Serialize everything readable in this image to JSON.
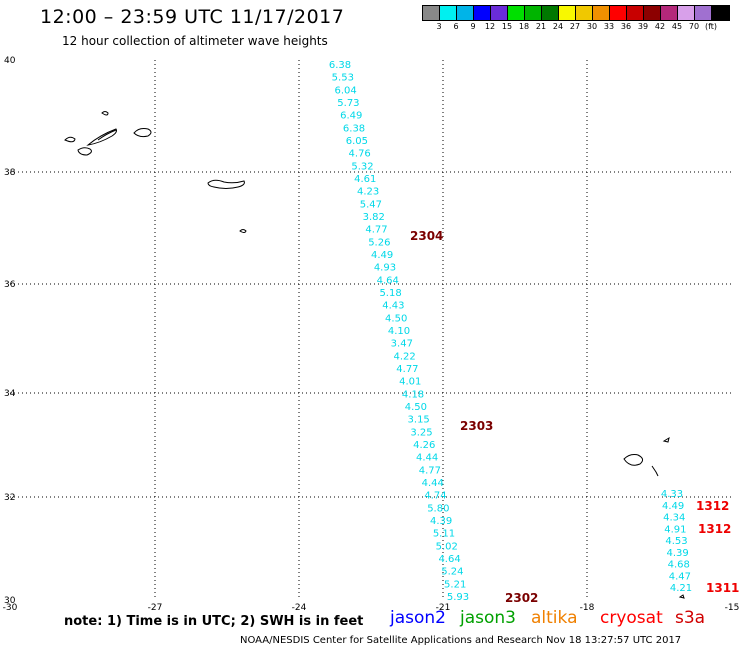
{
  "title": "12:00 – 23:59 UTC 11/17/2017",
  "subtitle": "12 hour collection of altimeter wave heights",
  "legend": {
    "colors": [
      "#888888",
      "#00f0f0",
      "#00b4e8",
      "#0000ff",
      "#6a2cd8",
      "#00e000",
      "#00b400",
      "#007800",
      "#f8f800",
      "#f0c800",
      "#f09000",
      "#ff0000",
      "#c80000",
      "#8c0000",
      "#b4287a",
      "#d8a0ea",
      "#a070d0",
      "#000000"
    ],
    "labels": [
      "3",
      "6",
      "9",
      "12",
      "15",
      "18",
      "21",
      "24",
      "27",
      "30",
      "33",
      "36",
      "39",
      "42",
      "45",
      "70",
      "(ft)"
    ]
  },
  "map": {
    "lon_ticks": [
      "-30",
      "-27",
      "-24",
      "-21",
      "-18",
      "-15"
    ],
    "lat_ticks": [
      "40",
      "38",
      "36",
      "34",
      "32",
      "30"
    ],
    "wave_color": "#00d8e8",
    "track_west": [
      "6.38",
      "5.53",
      "6.04",
      "5.73",
      "6.49",
      "6.38",
      "6.05",
      "4.76",
      "5.32",
      "4.61",
      "4.23",
      "5.47",
      "3.82",
      "4.77",
      "5.26",
      "4.49",
      "4.93",
      "4.64",
      "5.18",
      "4.43",
      "4.50",
      "4.10",
      "3.47",
      "4.22",
      "4.77",
      "4.01",
      "4.18",
      "4.50",
      "3.15",
      "3.25",
      "4.26",
      "4.44",
      "4.77",
      "4.44",
      "4.74",
      "5.80",
      "4.39",
      "5.11",
      "5.02",
      "4.64",
      "5.24",
      "5.21",
      "5.93"
    ],
    "track_east": [
      "4.33",
      "4.49",
      "4.34",
      "4.91",
      "4.53",
      "4.39",
      "4.68",
      "4.47",
      "4.21"
    ],
    "time_labels": [
      {
        "text": "2304",
        "color": "#7a0000"
      },
      {
        "text": "2303",
        "color": "#7a0000"
      },
      {
        "text": "2302",
        "color": "#7a0000"
      },
      {
        "text": "1312",
        "color": "#ee0000"
      },
      {
        "text": "1312",
        "color": "#ee0000"
      },
      {
        "text": "1311",
        "color": "#ee0000"
      }
    ]
  },
  "footer": {
    "note": "note:  1) Time is in UTC;  2) SWH is in feet",
    "satellites": [
      {
        "name": "jason2",
        "color": "#0000ff"
      },
      {
        "name": "jason3",
        "color": "#00a000"
      },
      {
        "name": "altika",
        "color": "#f08000"
      },
      {
        "name": "cryosat",
        "color": "#ff0000"
      },
      {
        "name": "s3a",
        "color": "#d00000"
      }
    ],
    "credit": "NOAA/NESDIS Center for Satellite Applications and Research   Nov 18 13:27:57 UTC 2017"
  }
}
